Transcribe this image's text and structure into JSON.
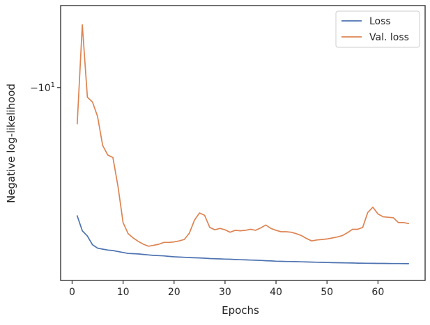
{
  "chart_data": {
    "type": "line",
    "title": "",
    "xlabel": "Epochs",
    "ylabel": "Negative log-likelihood",
    "xlim": [
      -2.25,
      69.25
    ],
    "ylim": [
      -6.0,
      -11.7
    ],
    "y_scale": "symlog",
    "grid": false,
    "legend_position": "top-right",
    "x_ticks": [
      {
        "value": 0,
        "label": "0"
      },
      {
        "value": 10,
        "label": "10"
      },
      {
        "value": 20,
        "label": "20"
      },
      {
        "value": 30,
        "label": "30"
      },
      {
        "value": 40,
        "label": "40"
      },
      {
        "value": 50,
        "label": "50"
      },
      {
        "value": 60,
        "label": "60"
      }
    ],
    "y_ticks": [
      {
        "value": -10,
        "label_base": "−10",
        "label_exp": "1"
      }
    ],
    "series": [
      {
        "name": "Loss",
        "color": "#4c72b0",
        "x": [
          1,
          2,
          3,
          4,
          5,
          6,
          7,
          8,
          9,
          10,
          11,
          12,
          13,
          14,
          15,
          16,
          17,
          18,
          19,
          20,
          21,
          22,
          23,
          24,
          25,
          26,
          27,
          28,
          29,
          30,
          31,
          32,
          33,
          34,
          35,
          36,
          37,
          38,
          39,
          40,
          41,
          42,
          43,
          44,
          45,
          46,
          47,
          48,
          49,
          50,
          51,
          52,
          53,
          54,
          55,
          56,
          57,
          58,
          59,
          60,
          61,
          62,
          63,
          64,
          65,
          66
        ],
        "values": [
          -7.34,
          -7.03,
          -6.92,
          -6.74,
          -6.67,
          -6.65,
          -6.63,
          -6.62,
          -6.6,
          -6.58,
          -6.56,
          -6.555,
          -6.55,
          -6.54,
          -6.53,
          -6.52,
          -6.515,
          -6.51,
          -6.5,
          -6.49,
          -6.485,
          -6.48,
          -6.475,
          -6.47,
          -6.468,
          -6.462,
          -6.455,
          -6.45,
          -6.447,
          -6.443,
          -6.44,
          -6.435,
          -6.43,
          -6.427,
          -6.423,
          -6.42,
          -6.415,
          -6.41,
          -6.405,
          -6.4,
          -6.397,
          -6.394,
          -6.392,
          -6.39,
          -6.387,
          -6.384,
          -6.381,
          -6.378,
          -6.375,
          -6.372,
          -6.37,
          -6.368,
          -6.366,
          -6.364,
          -6.362,
          -6.36,
          -6.358,
          -6.356,
          -6.355,
          -6.354,
          -6.353,
          -6.352,
          -6.351,
          -6.35,
          -6.349,
          -6.348
        ]
      },
      {
        "name": "Val. loss",
        "color": "#dd8452",
        "x": [
          1,
          2,
          3,
          4,
          5,
          6,
          7,
          8,
          9,
          10,
          11,
          12,
          13,
          14,
          15,
          16,
          17,
          18,
          19,
          20,
          21,
          22,
          23,
          24,
          25,
          26,
          27,
          28,
          29,
          30,
          31,
          32,
          33,
          34,
          35,
          36,
          37,
          38,
          39,
          40,
          41,
          42,
          43,
          44,
          45,
          46,
          47,
          48,
          49,
          50,
          51,
          52,
          53,
          54,
          55,
          56,
          57,
          58,
          59,
          60,
          61,
          62,
          63,
          64,
          65,
          66
        ],
        "values": [
          -9.25,
          -11.3,
          -9.8,
          -9.7,
          -9.4,
          -8.8,
          -8.6,
          -8.55,
          -7.95,
          -7.2,
          -6.97,
          -6.88,
          -6.81,
          -6.75,
          -6.71,
          -6.73,
          -6.75,
          -6.79,
          -6.79,
          -6.8,
          -6.82,
          -6.85,
          -6.98,
          -7.25,
          -7.4,
          -7.35,
          -7.1,
          -7.05,
          -7.08,
          -7.05,
          -7.0,
          -7.04,
          -7.03,
          -7.04,
          -7.06,
          -7.04,
          -7.09,
          -7.15,
          -7.08,
          -7.04,
          -7.01,
          -7.01,
          -7.0,
          -6.97,
          -6.93,
          -6.87,
          -6.82,
          -6.84,
          -6.85,
          -6.86,
          -6.88,
          -6.9,
          -6.93,
          -6.99,
          -7.06,
          -7.06,
          -7.1,
          -7.41,
          -7.52,
          -7.38,
          -7.32,
          -7.31,
          -7.3,
          -7.2,
          -7.2,
          -7.18
        ]
      }
    ]
  }
}
